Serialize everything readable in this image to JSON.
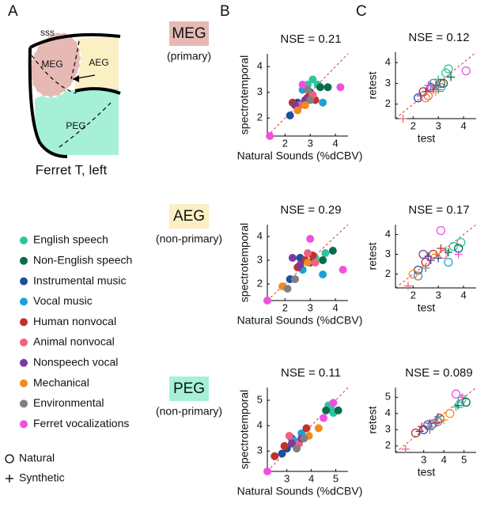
{
  "panel_labels": [
    "A",
    "B",
    "C"
  ],
  "panel_a": {
    "sulcus": "sss",
    "regions": [
      "MEG",
      "AEG",
      "PEG"
    ],
    "caption": "Ferret T, left"
  },
  "regions": [
    {
      "name": "MEG",
      "subtitle": "(primary)",
      "color": "#e6b9b5"
    },
    {
      "name": "AEG",
      "subtitle": "(non-primary)",
      "color": "#fbefc4"
    },
    {
      "name": "PEG",
      "subtitle": "(non-primary)",
      "color": "#a6f0d8"
    }
  ],
  "legend": {
    "items": [
      {
        "name": "English speech",
        "color": "#2ec4a0"
      },
      {
        "name": "Non-English speech",
        "color": "#0b6b4c"
      },
      {
        "name": "Instrumental music",
        "color": "#1f4e9c"
      },
      {
        "name": "Vocal music",
        "color": "#1aa3d4"
      },
      {
        "name": "Human nonvocal",
        "color": "#c0302a"
      },
      {
        "name": "Animal nonvocal",
        "color": "#f06080"
      },
      {
        "name": "Nonspeech vocal",
        "color": "#7a3c9c"
      },
      {
        "name": "Mechanical",
        "color": "#f08c1c"
      },
      {
        "name": "Environmental",
        "color": "#808080"
      },
      {
        "name": "Ferret vocalizations",
        "color": "#f050e0"
      }
    ],
    "markers": [
      {
        "name": "Natural",
        "marker": "o"
      },
      {
        "name": "Synthetic",
        "marker": "+"
      }
    ]
  },
  "chart_data": [
    {
      "type": "scatter",
      "title": "NSE = 0.21",
      "xlabel": "Natural Sounds (%dCBV)",
      "ylabel": "spectrotemporal",
      "xlim": [
        1.3,
        4.5
      ],
      "ylim": [
        1.3,
        4.5
      ],
      "xticks": [
        2,
        3,
        4
      ],
      "yticks": [
        2,
        3,
        4
      ],
      "series": [
        {
          "x": [
            3.1,
            3.3,
            2.9
          ],
          "values": [
            3.5,
            3.3,
            3.3
          ]
        },
        {
          "x": [
            3.7,
            3.4
          ],
          "values": [
            3.2,
            3.2
          ]
        },
        {
          "x": [
            2.2,
            2.5,
            3.0
          ],
          "values": [
            2.1,
            2.6,
            3.0
          ]
        },
        {
          "x": [
            3.5,
            2.7
          ],
          "values": [
            2.6,
            3.1
          ]
        },
        {
          "x": [
            2.3,
            2.9,
            3.2
          ],
          "values": [
            2.6,
            2.8,
            2.7
          ]
        },
        {
          "x": [
            2.6,
            3.1
          ],
          "values": [
            2.5,
            2.9
          ]
        },
        {
          "x": [
            2.8,
            2.4
          ],
          "values": [
            2.7,
            2.5
          ]
        },
        {
          "x": [
            2.5,
            2.8
          ],
          "values": [
            2.3,
            2.5
          ]
        },
        {
          "x": [
            2.9,
            3.0
          ],
          "values": [
            3.1,
            2.7
          ]
        },
        {
          "x": [
            4.2,
            2.7,
            1.4
          ],
          "values": [
            3.2,
            3.3,
            1.3
          ]
        }
      ]
    },
    {
      "type": "scatter",
      "title": "NSE = 0.29",
      "xlabel": "Natural Sounds (%dCBV)",
      "ylabel": "spectrotemporal",
      "xlim": [
        1.3,
        4.5
      ],
      "ylim": [
        1.3,
        4.5
      ],
      "xticks": [
        2,
        3,
        4
      ],
      "yticks": [
        2,
        3,
        4
      ],
      "series": [
        {
          "x": [
            3.6,
            3.2
          ],
          "values": [
            3.3,
            3.1
          ]
        },
        {
          "x": [
            3.9,
            3.5
          ],
          "values": [
            3.4,
            3.0
          ]
        },
        {
          "x": [
            2.2,
            2.6,
            3.0
          ],
          "values": [
            2.2,
            3.1,
            2.9
          ]
        },
        {
          "x": [
            3.5,
            2.7
          ],
          "values": [
            2.4,
            2.6
          ]
        },
        {
          "x": [
            2.8,
            3.1,
            2.5
          ],
          "values": [
            3.0,
            3.2,
            2.7
          ]
        },
        {
          "x": [
            3.2,
            2.9
          ],
          "values": [
            2.9,
            3.3
          ]
        },
        {
          "x": [
            2.3,
            2.6
          ],
          "values": [
            3.1,
            2.8
          ]
        },
        {
          "x": [
            1.9,
            2.9
          ],
          "values": [
            1.9,
            2.9
          ]
        },
        {
          "x": [
            2.1,
            2.4
          ],
          "values": [
            1.8,
            2.2
          ]
        },
        {
          "x": [
            3.0,
            4.3,
            1.3
          ],
          "values": [
            3.9,
            2.6,
            1.3
          ]
        }
      ]
    },
    {
      "type": "scatter",
      "title": "NSE = 0.11",
      "xlabel": "Natural Sounds (%dCBV)",
      "ylabel": "spectrotemporal",
      "xlim": [
        2.2,
        5.5
      ],
      "ylim": [
        2.2,
        5.5
      ],
      "xticks": [
        3,
        4,
        5
      ],
      "yticks": [
        3,
        4,
        5
      ],
      "series": [
        {
          "x": [
            4.8,
            4.9,
            4.7
          ],
          "values": [
            4.7,
            4.5,
            4.8
          ]
        },
        {
          "x": [
            5.1,
            4.6
          ],
          "values": [
            4.6,
            4.6
          ]
        },
        {
          "x": [
            3.0,
            3.2,
            2.8
          ],
          "values": [
            3.1,
            3.5,
            2.9
          ]
        },
        {
          "x": [
            3.3,
            3.6
          ],
          "values": [
            3.4,
            3.7
          ]
        },
        {
          "x": [
            3.8,
            2.9,
            2.5
          ],
          "values": [
            3.9,
            3.2,
            2.8
          ]
        },
        {
          "x": [
            3.5,
            3.1
          ],
          "values": [
            3.3,
            3.6
          ]
        },
        {
          "x": [
            3.2,
            3.6
          ],
          "values": [
            3.3,
            3.5
          ]
        },
        {
          "x": [
            4.3,
            3.9
          ],
          "values": [
            3.9,
            3.6
          ]
        },
        {
          "x": [
            3.7,
            3.4
          ],
          "values": [
            3.5,
            3.1
          ]
        },
        {
          "x": [
            4.5,
            4.9,
            2.2
          ],
          "values": [
            4.3,
            4.9,
            2.2
          ]
        }
      ]
    },
    {
      "type": "scatter",
      "title": "NSE = 0.12",
      "xlabel": "test",
      "ylabel": "retest",
      "xlim": [
        1.3,
        4.5
      ],
      "ylim": [
        1.3,
        4.5
      ],
      "xticks": [
        2,
        3,
        4
      ],
      "yticks": [
        2,
        3,
        4
      ],
      "series": [
        {
          "x": [
            3.3,
            3.0,
            3.4
          ],
          "values": [
            3.5,
            3.2,
            3.7
          ],
          "markers": [
            "o",
            "+",
            "o"
          ]
        },
        {
          "x": [
            3.2,
            3.5
          ],
          "values": [
            3.0,
            3.3
          ],
          "markers": [
            "o",
            "+"
          ]
        },
        {
          "x": [
            2.2,
            2.5,
            2.9
          ],
          "values": [
            2.3,
            2.6,
            2.9
          ],
          "markers": [
            "o",
            "+",
            "+"
          ]
        },
        {
          "x": [
            3.1,
            2.7
          ],
          "values": [
            2.8,
            2.9
          ],
          "markers": [
            "o",
            "+"
          ]
        },
        {
          "x": [
            2.4,
            2.8,
            3.1
          ],
          "values": [
            2.6,
            2.7,
            3.0
          ],
          "markers": [
            "o",
            "+",
            "o"
          ]
        },
        {
          "x": [
            2.6,
            1.6
          ],
          "values": [
            2.4,
            1.3
          ],
          "markers": [
            "o",
            "+"
          ]
        },
        {
          "x": [
            2.7,
            2.3
          ],
          "values": [
            2.8,
            2.4
          ],
          "markers": [
            "o",
            "+"
          ]
        },
        {
          "x": [
            2.5,
            2.9
          ],
          "values": [
            2.3,
            2.6
          ],
          "markers": [
            "o",
            "+"
          ]
        },
        {
          "x": [
            2.8,
            3.0
          ],
          "values": [
            3.0,
            2.7
          ],
          "markers": [
            "o",
            "+"
          ]
        },
        {
          "x": [
            4.1,
            2.6
          ],
          "values": [
            3.6,
            2.9
          ],
          "markers": [
            "o",
            "+"
          ]
        }
      ]
    },
    {
      "type": "scatter",
      "title": "NSE = 0.17",
      "xlabel": "test",
      "ylabel": "retest",
      "xlim": [
        1.3,
        4.5
      ],
      "ylim": [
        1.3,
        4.5
      ],
      "xticks": [
        2,
        3,
        4
      ],
      "yticks": [
        2,
        3,
        4
      ],
      "series": [
        {
          "x": [
            3.6,
            3.3,
            3.9
          ],
          "values": [
            3.4,
            3.2,
            3.6
          ],
          "markers": [
            "o",
            "+",
            "o"
          ]
        },
        {
          "x": [
            3.8,
            3.4
          ],
          "values": [
            3.3,
            3.1
          ],
          "markers": [
            "o",
            "+"
          ]
        },
        {
          "x": [
            2.2,
            2.6,
            3.0
          ],
          "values": [
            2.2,
            2.9,
            2.8
          ],
          "markers": [
            "o",
            "+",
            "+"
          ]
        },
        {
          "x": [
            3.4,
            2.7
          ],
          "values": [
            2.6,
            2.7
          ],
          "markers": [
            "o",
            "+"
          ]
        },
        {
          "x": [
            2.8,
            3.1,
            2.5
          ],
          "values": [
            3.0,
            3.3,
            2.6
          ],
          "markers": [
            "o",
            "+",
            "o"
          ]
        },
        {
          "x": [
            3.2,
            1.8
          ],
          "values": [
            3.0,
            1.4
          ],
          "markers": [
            "o",
            "+"
          ]
        },
        {
          "x": [
            2.4,
            2.7
          ],
          "values": [
            3.0,
            2.7
          ],
          "markers": [
            "o",
            "+"
          ]
        },
        {
          "x": [
            2.0,
            2.9
          ],
          "values": [
            2.0,
            3.0
          ],
          "markers": [
            "o",
            "+"
          ]
        },
        {
          "x": [
            2.2,
            2.5
          ],
          "values": [
            1.9,
            2.3
          ],
          "markers": [
            "o",
            "+"
          ]
        },
        {
          "x": [
            3.1,
            3.8
          ],
          "values": [
            4.2,
            3.0
          ],
          "markers": [
            "o",
            "+"
          ]
        }
      ]
    },
    {
      "type": "scatter",
      "title": "NSE = 0.089",
      "xlabel": "test",
      "ylabel": "retest",
      "xlim": [
        1.6,
        5.6
      ],
      "ylim": [
        1.6,
        5.6
      ],
      "xticks": [
        3,
        4,
        5
      ],
      "yticks": [
        2,
        3,
        4,
        5
      ],
      "series": [
        {
          "x": [
            4.8,
            4.6,
            4.9
          ],
          "values": [
            4.6,
            4.4,
            4.9
          ],
          "markers": [
            "o",
            "+",
            "o"
          ]
        },
        {
          "x": [
            5.1,
            4.7
          ],
          "values": [
            4.7,
            4.5
          ],
          "markers": [
            "o",
            "+"
          ]
        },
        {
          "x": [
            3.0,
            3.3,
            2.8
          ],
          "values": [
            3.0,
            3.4,
            2.9
          ],
          "markers": [
            "o",
            "+",
            "+"
          ]
        },
        {
          "x": [
            3.4,
            3.7
          ],
          "values": [
            3.3,
            3.8
          ],
          "markers": [
            "o",
            "+"
          ]
        },
        {
          "x": [
            3.8,
            2.9,
            2.6
          ],
          "values": [
            3.7,
            3.2,
            2.8
          ],
          "markers": [
            "o",
            "+",
            "o"
          ]
        },
        {
          "x": [
            3.5,
            2.1
          ],
          "values": [
            3.4,
            1.8
          ],
          "markers": [
            "o",
            "+"
          ]
        },
        {
          "x": [
            3.2,
            3.6
          ],
          "values": [
            3.3,
            3.4
          ],
          "markers": [
            "o",
            "+"
          ]
        },
        {
          "x": [
            4.3,
            4.0
          ],
          "values": [
            4.0,
            3.6
          ],
          "markers": [
            "o",
            "+"
          ]
        },
        {
          "x": [
            3.7,
            3.3
          ],
          "values": [
            3.5,
            3.0
          ],
          "markers": [
            "o",
            "+"
          ]
        },
        {
          "x": [
            4.6,
            4.9
          ],
          "values": [
            5.2,
            5.0
          ],
          "markers": [
            "o",
            "+"
          ]
        }
      ]
    }
  ]
}
